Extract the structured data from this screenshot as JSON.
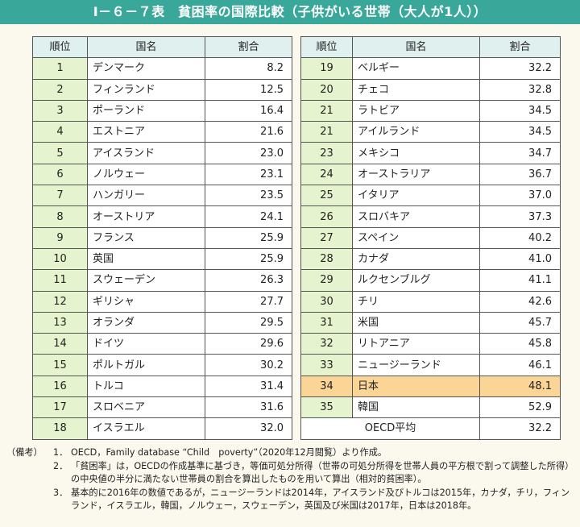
{
  "title": "Ⅰ－６－７表　貧困率の国際比較（子供がいる世帯（大人が1人））",
  "headers": {
    "rank": "順位",
    "country": "国名",
    "rate": "割合"
  },
  "left_table": [
    {
      "rank": "1",
      "country": "デンマーク",
      "rate": "8.2"
    },
    {
      "rank": "2",
      "country": "フィンランド",
      "rate": "12.5"
    },
    {
      "rank": "3",
      "country": "ポーランド",
      "rate": "16.4"
    },
    {
      "rank": "4",
      "country": "エストニア",
      "rate": "21.6"
    },
    {
      "rank": "5",
      "country": "アイスランド",
      "rate": "23.0"
    },
    {
      "rank": "6",
      "country": "ノルウェー",
      "rate": "23.1"
    },
    {
      "rank": "7",
      "country": "ハンガリー",
      "rate": "23.5"
    },
    {
      "rank": "8",
      "country": "オーストリア",
      "rate": "24.1"
    },
    {
      "rank": "9",
      "country": "フランス",
      "rate": "25.9"
    },
    {
      "rank": "10",
      "country": "英国",
      "rate": "25.9"
    },
    {
      "rank": "11",
      "country": "スウェーデン",
      "rate": "26.3"
    },
    {
      "rank": "12",
      "country": "ギリシャ",
      "rate": "27.7"
    },
    {
      "rank": "13",
      "country": "オランダ",
      "rate": "29.5"
    },
    {
      "rank": "14",
      "country": "ドイツ",
      "rate": "29.6"
    },
    {
      "rank": "15",
      "country": "ポルトガル",
      "rate": "30.2"
    },
    {
      "rank": "16",
      "country": "トルコ",
      "rate": "31.4"
    },
    {
      "rank": "17",
      "country": "スロベニア",
      "rate": "31.6"
    },
    {
      "rank": "18",
      "country": "イスラエル",
      "rate": "32.0"
    }
  ],
  "right_table": [
    {
      "rank": "19",
      "country": "ベルギー",
      "rate": "32.2"
    },
    {
      "rank": "20",
      "country": "チェコ",
      "rate": "32.8"
    },
    {
      "rank": "21",
      "country": "ラトビア",
      "rate": "34.5"
    },
    {
      "rank": "21",
      "country": "アイルランド",
      "rate": "34.5"
    },
    {
      "rank": "23",
      "country": "メキシコ",
      "rate": "34.7"
    },
    {
      "rank": "24",
      "country": "オーストラリア",
      "rate": "36.7"
    },
    {
      "rank": "25",
      "country": "イタリア",
      "rate": "37.0"
    },
    {
      "rank": "26",
      "country": "スロバキア",
      "rate": "37.3"
    },
    {
      "rank": "27",
      "country": "スペイン",
      "rate": "40.2"
    },
    {
      "rank": "28",
      "country": "カナダ",
      "rate": "41.0"
    },
    {
      "rank": "29",
      "country": "ルクセンブルグ",
      "rate": "41.1"
    },
    {
      "rank": "30",
      "country": "チリ",
      "rate": "42.6"
    },
    {
      "rank": "31",
      "country": "米国",
      "rate": "45.7"
    },
    {
      "rank": "32",
      "country": "リトアニア",
      "rate": "45.8"
    },
    {
      "rank": "33",
      "country": "ニュージーランド",
      "rate": "46.1"
    },
    {
      "rank": "34",
      "country": "日本",
      "rate": "48.1"
    },
    {
      "rank": "35",
      "country": "韓国",
      "rate": "52.9"
    }
  ],
  "highlight_color": "#fbd596",
  "oecd_average": {
    "label": "OECD平均",
    "rate": "32.2"
  },
  "notes": {
    "head": "（備考）",
    "items": [
      {
        "num": "1．",
        "text": "OECD，Family database “Child　poverty”（2020年12月閲覧）より作成。"
      },
      {
        "num": "2．",
        "text": "「貧困率」は，OECDの作成基準に基づき，等価可処分所得（世帯の可処分所得を世帯人員の平方根で割って調整した所得）の中央値の半分に満たない世帯員の割合を算出したものを用いて算出（相対的貧困率）。"
      },
      {
        "num": "3．",
        "text": "基本的に2016年の数値であるが，ニュージーランドは2014年，アイスランド及びトルコは2015年，カナダ，チリ，フィンランド，イスラエル，韓国，ノルウェー，スウェーデン，英国及び米国は2017年，日本は2018年。"
      }
    ]
  }
}
